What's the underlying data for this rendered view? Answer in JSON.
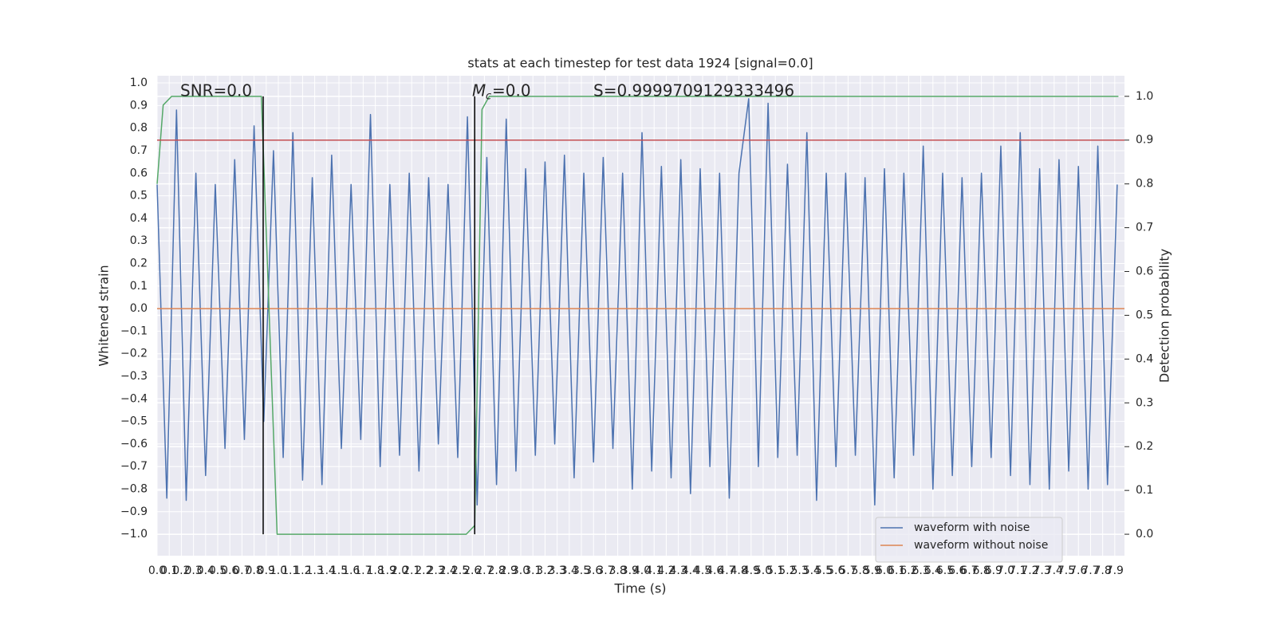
{
  "chart_data": {
    "type": "line",
    "title": "stats at each timestep for test data 1924 [signal=0.0]",
    "xlabel": "Time (s)",
    "ylabel": "Whitened strain",
    "y2label": "Detection probability",
    "annotations": {
      "snr": "SNR=0.0",
      "mc_symbol": "M",
      "mc_subscript": "c",
      "mc_text": "=0.0",
      "s": "S=0.9999709129333496"
    },
    "xlim": [
      0,
      7.98
    ],
    "ylim": [
      -1.095,
      1.032
    ],
    "y2lim": [
      -0.049,
      1.047
    ],
    "grid": true,
    "legend": "lower right",
    "xticks": [
      {
        "value": 0,
        "label": "0.0"
      },
      0.1,
      0.2,
      0.3,
      0.4,
      0.5,
      0.6,
      0.7,
      0.8,
      0.9,
      {
        "value": 1,
        "label": "1.0"
      },
      1.1,
      1.2,
      1.3,
      1.4,
      1.5,
      1.6,
      1.7,
      1.8,
      1.9,
      {
        "value": 2,
        "label": "2.0"
      },
      2.1,
      2.2,
      2.3,
      2.4,
      2.5,
      2.6,
      2.7,
      2.8,
      2.9,
      {
        "value": 3,
        "label": "3.0"
      },
      3.1,
      3.2,
      3.3,
      3.4,
      3.5,
      3.6,
      3.7,
      3.8,
      3.9,
      {
        "value": 4,
        "label": "4.0"
      },
      4.1,
      4.2,
      4.3,
      4.4,
      4.5,
      4.6,
      4.7,
      4.8,
      4.9,
      {
        "value": 5,
        "label": "5.0"
      },
      5.1,
      5.2,
      5.3,
      5.4,
      5.5,
      5.6,
      5.7,
      5.8,
      5.9,
      {
        "value": 6,
        "label": "6.0"
      },
      6.1,
      6.2,
      6.3,
      6.4,
      6.5,
      6.6,
      6.7,
      6.8,
      6.9,
      {
        "value": 7,
        "label": "7.0"
      },
      7.1,
      7.2,
      7.3,
      7.4,
      7.5,
      7.6,
      7.7,
      7.8,
      7.9
    ],
    "yticks": [
      {
        "value": -1,
        "label": "−1.0"
      },
      {
        "value": -0.9,
        "label": "−0.9"
      },
      {
        "value": -0.8,
        "label": "−0.8"
      },
      {
        "value": -0.7,
        "label": "−0.7"
      },
      {
        "value": -0.6,
        "label": "−0.6"
      },
      {
        "value": -0.5,
        "label": "−0.5"
      },
      {
        "value": -0.4,
        "label": "−0.4"
      },
      {
        "value": -0.3,
        "label": "−0.3"
      },
      {
        "value": -0.2,
        "label": "−0.2"
      },
      {
        "value": -0.1,
        "label": "−0.1"
      },
      {
        "value": 0,
        "label": "0.0"
      },
      0.1,
      0.2,
      0.3,
      0.4,
      0.5,
      0.6,
      0.7,
      0.8,
      0.9,
      {
        "value": 1,
        "label": "1.0"
      }
    ],
    "y2ticks": [
      {
        "value": 0,
        "label": "0.0"
      },
      0.1,
      0.2,
      0.3,
      0.4,
      0.5,
      0.6,
      0.7,
      0.8,
      0.9,
      {
        "value": 1,
        "label": "1.0"
      }
    ],
    "series": [
      {
        "name": "waveform with noise",
        "color": "#4c72b0",
        "x": [
          0,
          0.08,
          0.16,
          0.24,
          0.32,
          0.4,
          0.48,
          0.56,
          0.64,
          0.72,
          0.8,
          0.88,
          0.96,
          1.04,
          1.12,
          1.2,
          1.28,
          1.36,
          1.44,
          1.52,
          1.6,
          1.68,
          1.76,
          1.84,
          1.92,
          2,
          2.08,
          2.16,
          2.24,
          2.32,
          2.4,
          2.48,
          2.56,
          2.64,
          2.72,
          2.8,
          2.88,
          2.96,
          3.04,
          3.12,
          3.2,
          3.28,
          3.36,
          3.44,
          3.52,
          3.6,
          3.68,
          3.76,
          3.84,
          3.92,
          4,
          4.08,
          4.16,
          4.24,
          4.32,
          4.4,
          4.48,
          4.56,
          4.64,
          4.72,
          4.8,
          4.88,
          4.96,
          5.04,
          5.12,
          5.2,
          5.28,
          5.36,
          5.44,
          5.52,
          5.6,
          5.68,
          5.76,
          5.84,
          5.92,
          6,
          6.08,
          6.16,
          6.24,
          6.32,
          6.4,
          6.48,
          6.56,
          6.64,
          6.72,
          6.8,
          6.88,
          6.96,
          7.04,
          7.12,
          7.2,
          7.28,
          7.36,
          7.44,
          7.52,
          7.6,
          7.68,
          7.76,
          7.84,
          7.92
        ],
        "values": [
          0.55,
          -0.84,
          0.88,
          -0.85,
          0.6,
          -0.74,
          0.55,
          -0.62,
          0.66,
          -0.58,
          0.81,
          -0.5,
          0.7,
          -0.66,
          0.78,
          -0.76,
          0.58,
          -0.78,
          0.68,
          -0.62,
          0.55,
          -0.58,
          0.86,
          -0.7,
          0.55,
          -0.65,
          0.6,
          -0.72,
          0.58,
          -0.6,
          0.55,
          -0.66,
          0.85,
          -0.87,
          0.67,
          -0.78,
          0.84,
          -0.72,
          0.62,
          -0.65,
          0.65,
          -0.6,
          0.68,
          -0.75,
          0.6,
          -0.68,
          0.67,
          -0.62,
          0.6,
          -0.8,
          0.78,
          -0.72,
          0.63,
          -0.75,
          0.66,
          -0.82,
          0.62,
          -0.7,
          0.6,
          -0.84,
          0.6,
          0.93,
          -0.7,
          0.91,
          -0.66,
          0.64,
          -0.65,
          0.78,
          -0.85,
          0.6,
          -0.7,
          0.6,
          -0.65,
          0.58,
          -0.87,
          0.62,
          -0.75,
          0.6,
          -0.65,
          0.72,
          -0.8,
          0.6,
          -0.74,
          0.58,
          -0.7,
          0.6,
          -0.66,
          0.72,
          -0.74,
          0.78,
          -0.78,
          0.62,
          -0.8,
          0.66,
          -0.72,
          0.63,
          -0.8,
          0.72,
          -0.78,
          0.55
        ]
      },
      {
        "name": "waveform without noise",
        "color": "#dd8452",
        "x": [
          0,
          7.98
        ],
        "values": [
          0,
          0
        ]
      },
      {
        "color": "#55a868",
        "axis": "y2",
        "x": [
          0,
          0.05,
          0.12,
          0.86,
          0.99,
          1.07,
          2.26,
          2.55,
          2.62,
          2.68,
          2.74,
          7.93
        ],
        "values": [
          0.8,
          0.98,
          1,
          1,
          0,
          0,
          0,
          0,
          0.02,
          0.97,
          1,
          1
        ]
      },
      {
        "color": "#c44e52",
        "axis": "y2",
        "x": [
          0,
          7.98
        ],
        "values": [
          0.9,
          0.9
        ]
      }
    ],
    "vlines": {
      "color": "#000000",
      "x": [
        0.875,
        2.62
      ]
    }
  }
}
